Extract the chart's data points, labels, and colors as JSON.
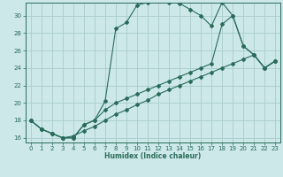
{
  "xlabel": "Humidex (Indice chaleur)",
  "bg_color": "#cce8e8",
  "grid_color": "#aacccc",
  "line_color": "#2a6b5a",
  "xlim": [
    -0.5,
    23.5
  ],
  "ylim": [
    15.5,
    31.5
  ],
  "xticks": [
    0,
    1,
    2,
    3,
    4,
    5,
    6,
    7,
    8,
    9,
    10,
    11,
    12,
    13,
    14,
    15,
    16,
    17,
    18,
    19,
    20,
    21,
    22,
    23
  ],
  "yticks": [
    16,
    18,
    20,
    22,
    24,
    26,
    28,
    30
  ],
  "series1_x": [
    0,
    1,
    2,
    3,
    4,
    5,
    6,
    7,
    8,
    9,
    10,
    11,
    12,
    13,
    14,
    15,
    16,
    17,
    18,
    19,
    20,
    21,
    22,
    23
  ],
  "series1_y": [
    18,
    17,
    16.5,
    16,
    16,
    17.5,
    18,
    20.2,
    28.5,
    29.2,
    31.2,
    31.5,
    31.7,
    31.5,
    31.4,
    30.7,
    30.0,
    28.8,
    31.5,
    30.0,
    26.5,
    25.5,
    24.0,
    24.8
  ],
  "series2_x": [
    0,
    1,
    2,
    3,
    4,
    5,
    6,
    7,
    8,
    9,
    10,
    11,
    12,
    13,
    14,
    15,
    16,
    17,
    18,
    19,
    20,
    21,
    22,
    23
  ],
  "series2_y": [
    18,
    17,
    16.5,
    16,
    16,
    17.5,
    18,
    19.2,
    20.0,
    20.5,
    21.0,
    21.5,
    22.0,
    22.5,
    23.0,
    23.5,
    24.0,
    24.5,
    29.0,
    30.0,
    26.5,
    25.5,
    24.0,
    24.8
  ],
  "series3_x": [
    0,
    1,
    2,
    3,
    4,
    5,
    6,
    7,
    8,
    9,
    10,
    11,
    12,
    13,
    14,
    15,
    16,
    17,
    18,
    19,
    20,
    21,
    22,
    23
  ],
  "series3_y": [
    18,
    17,
    16.5,
    16,
    16.2,
    16.8,
    17.3,
    18.0,
    18.7,
    19.2,
    19.8,
    20.3,
    21.0,
    21.5,
    22.0,
    22.5,
    23.0,
    23.5,
    24.0,
    24.5,
    25.0,
    25.5,
    24.0,
    24.8
  ]
}
